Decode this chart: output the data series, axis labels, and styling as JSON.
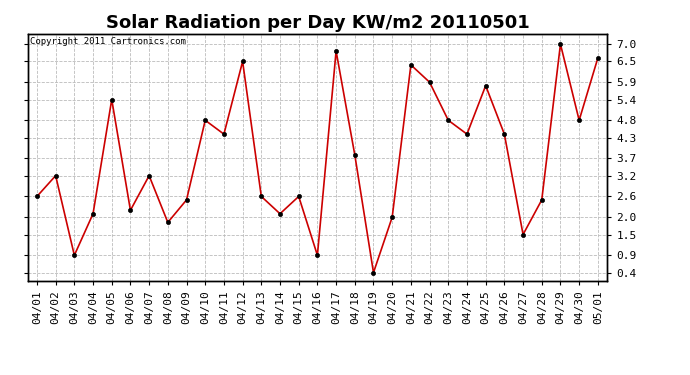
{
  "title": "Solar Radiation per Day KW/m2 20110501",
  "copyright": "Copyright 2011 Cartronics.com",
  "dates": [
    "04/01",
    "04/02",
    "04/03",
    "04/04",
    "04/05",
    "04/06",
    "04/07",
    "04/08",
    "04/09",
    "04/10",
    "04/11",
    "04/12",
    "04/13",
    "04/14",
    "04/15",
    "04/16",
    "04/17",
    "04/18",
    "04/19",
    "04/20",
    "04/21",
    "04/22",
    "04/23",
    "04/24",
    "04/25",
    "04/26",
    "04/27",
    "04/28",
    "04/29",
    "04/30",
    "05/01"
  ],
  "values": [
    2.6,
    3.2,
    0.9,
    2.1,
    5.4,
    2.2,
    3.2,
    1.85,
    2.5,
    4.8,
    4.4,
    6.5,
    2.6,
    2.1,
    2.6,
    0.9,
    6.8,
    3.8,
    0.4,
    2.0,
    6.4,
    5.9,
    4.8,
    4.4,
    5.8,
    4.4,
    1.5,
    2.5,
    7.0,
    4.8,
    6.6
  ],
  "line_color": "#cc0000",
  "marker": "o",
  "marker_size": 3,
  "yticks": [
    0.4,
    0.9,
    1.5,
    2.0,
    2.6,
    3.2,
    3.7,
    4.3,
    4.8,
    5.4,
    5.9,
    6.5,
    7.0
  ],
  "ylim": [
    0.15,
    7.3
  ],
  "background_color": "#ffffff",
  "grid_color": "#bbbbbb",
  "title_fontsize": 13,
  "tick_fontsize": 8,
  "copyright_fontsize": 6.5
}
